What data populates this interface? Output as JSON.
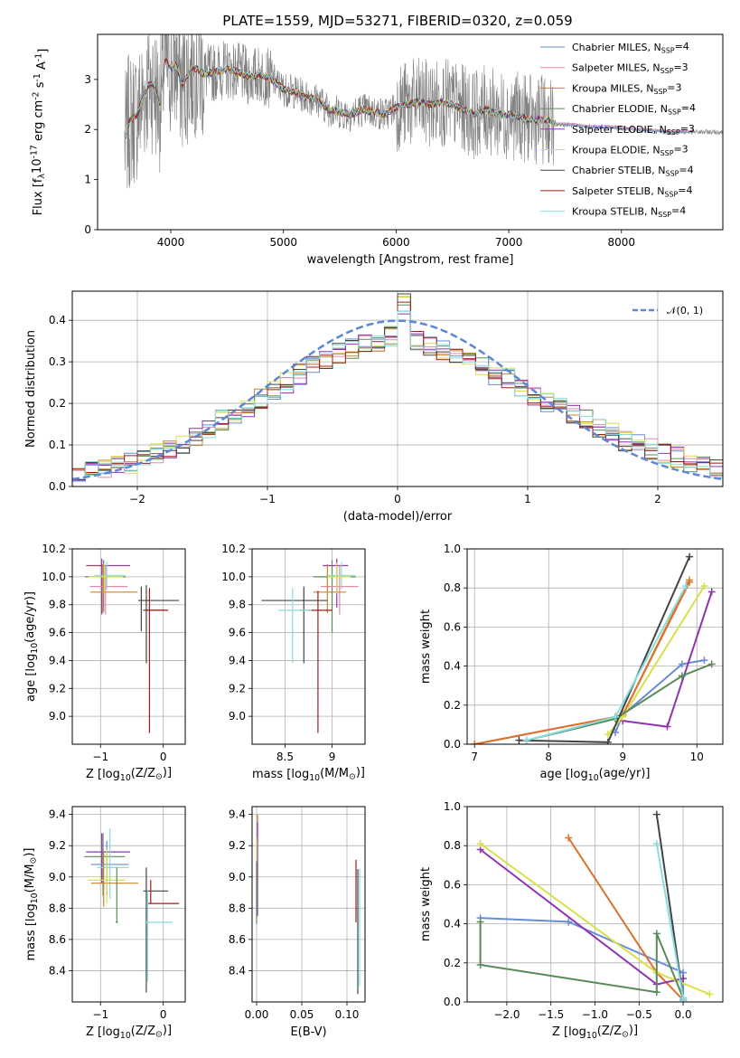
{
  "figure": {
    "title": "PLATE=1559, MJD=53271, FIBERID=0320, z=0.059"
  },
  "chart_data": [
    {
      "id": "spectrum",
      "type": "line",
      "xlabel": "wavelength [Angstrom, rest frame]",
      "ylabel": "Flux [f_λ10^{-17} erg cm^{-2} s^{-1} A^{-1}]",
      "xlim": [
        3350,
        8900
      ],
      "ylim": [
        0,
        3.9
      ],
      "xticks": [
        4000,
        5000,
        6000,
        7000,
        8000
      ],
      "yticks": [
        0,
        1,
        2,
        3
      ],
      "grid": false,
      "legend_position": "right",
      "data_color": "#808080",
      "data_range": [
        3590,
        8900
      ],
      "continuum": {
        "x": [
          3590,
          3620,
          3650,
          3700,
          3750,
          3800,
          3850,
          3900,
          3950,
          4000,
          4050,
          4100,
          4200,
          4300,
          4400,
          4500,
          4600,
          4700,
          4800,
          4900,
          5000,
          5100,
          5200,
          5300,
          5400,
          5500,
          5600,
          5700,
          5800,
          5900,
          6000,
          6100,
          6200,
          6300,
          6400,
          6500,
          6600,
          6700,
          6800,
          6900,
          7000,
          7100,
          7200,
          7300,
          7400,
          7420
        ],
        "y": [
          1.7,
          2.1,
          2.2,
          2.3,
          2.6,
          2.9,
          2.9,
          2.5,
          3.4,
          3.2,
          3.3,
          2.9,
          3.25,
          3.1,
          3.15,
          3.2,
          3.15,
          3.05,
          3.1,
          3.0,
          2.8,
          2.75,
          2.65,
          2.6,
          2.4,
          2.35,
          2.3,
          2.4,
          2.35,
          2.3,
          2.45,
          2.5,
          2.55,
          2.5,
          2.55,
          2.5,
          2.4,
          2.3,
          2.4,
          2.3,
          2.3,
          2.25,
          2.2,
          2.2,
          2.15,
          2.1
        ]
      },
      "model_extension": {
        "x": [
          7420,
          7500,
          7600,
          7700,
          7800,
          7900,
          8000,
          8100,
          8200,
          8300,
          8400,
          8500,
          8600
        ],
        "y": [
          2.1,
          2.1,
          2.08,
          2.05,
          2.05,
          2.05,
          2.02,
          2.0,
          1.98,
          1.97,
          1.95,
          1.95,
          1.95
        ]
      },
      "series": [
        {
          "name": "Chabrier MILES, N_{SSP}=4",
          "color": "#6a8bd6"
        },
        {
          "name": "Salpeter MILES, N_{SSP}=3",
          "color": "#e08ab4"
        },
        {
          "name": "Kroupa MILES, N_{SSP}=3",
          "color": "#c7842a"
        },
        {
          "name": "Chabrier ELODIE, N_{SSP}=4",
          "color": "#5a8a5a"
        },
        {
          "name": "Salpeter ELODIE, N_{SSP}=3",
          "color": "#8e34b0"
        },
        {
          "name": "Kroupa ELODIE, N_{SSP}=3",
          "color": "#d8e04a"
        },
        {
          "name": "Chabrier STELIB, N_{SSP}=4",
          "color": "#444444"
        },
        {
          "name": "Salpeter STELIB, N_{SSP}=4",
          "color": "#a01c1c"
        },
        {
          "name": "Kroupa STELIB, N_{SSP}=4",
          "color": "#88dede"
        }
      ]
    },
    {
      "id": "residuals",
      "type": "histogram",
      "xlabel": "(data-model)/error",
      "ylabel": "Normed distribution",
      "xlim": [
        -2.5,
        2.5
      ],
      "ylim": [
        0,
        0.47
      ],
      "xticks": [
        -2,
        -1,
        0,
        1,
        2
      ],
      "yticks": [
        0.0,
        0.1,
        0.2,
        0.3,
        0.4
      ],
      "grid": true,
      "legend": "𝒩(0, 1)",
      "legend_position": "top-right",
      "gauss_color": "#5b87d6",
      "bin_edges_range": [
        -2.5,
        2.5
      ],
      "bin_count": 50,
      "base_distribution": [
        0.03,
        0.035,
        0.04,
        0.05,
        0.055,
        0.07,
        0.08,
        0.09,
        0.1,
        0.12,
        0.14,
        0.16,
        0.17,
        0.19,
        0.21,
        0.23,
        0.25,
        0.27,
        0.29,
        0.3,
        0.32,
        0.33,
        0.34,
        0.35,
        0.36,
        0.37,
        0.35,
        0.34,
        0.33,
        0.32,
        0.3,
        0.29,
        0.27,
        0.26,
        0.24,
        0.22,
        0.2,
        0.19,
        0.17,
        0.16,
        0.14,
        0.13,
        0.11,
        0.1,
        0.09,
        0.08,
        0.07,
        0.06,
        0.05,
        0.04
      ]
    },
    {
      "id": "age_vs_Z",
      "type": "errorbar",
      "xlabel": "Z [log_{10}(Z/Z_⊙)]",
      "ylabel": "age [log_{10}(age/yr)]",
      "xlim": [
        -1.45,
        0.35
      ],
      "ylim": [
        8.8,
        10.2
      ],
      "xticks": [
        -1,
        0
      ],
      "yticks": [
        9.0,
        9.2,
        9.4,
        9.6,
        9.8,
        10.0,
        10.2
      ],
      "grid": true,
      "points": [
        {
          "x": -0.98,
          "y": 10.08,
          "xerr": [
            0.25,
            0.45
          ],
          "yerr": [
            0.35,
            0.05
          ],
          "color": "#8e34b0"
        },
        {
          "x": -0.95,
          "y": 10.0,
          "xerr": [
            0.3,
            0.35
          ],
          "yerr": [
            0.25,
            0.12
          ],
          "color": "#5a8a5a"
        },
        {
          "x": -0.92,
          "y": 9.93,
          "xerr": [
            0.25,
            0.35
          ],
          "yerr": [
            0.2,
            0.15
          ],
          "color": "#e08ab4"
        },
        {
          "x": -0.9,
          "y": 10.01,
          "xerr": [
            0.2,
            0.3
          ],
          "yerr": [
            0.1,
            0.1
          ],
          "color": "#88dede"
        },
        {
          "x": -0.96,
          "y": 9.89,
          "xerr": [
            0.2,
            0.55
          ],
          "yerr": [
            0.15,
            0.2
          ],
          "color": "#c7842a"
        },
        {
          "x": -0.94,
          "y": 10.0,
          "xerr": [
            0.25,
            0.3
          ],
          "yerr": [
            0.12,
            0.1
          ],
          "color": "#d8e04a"
        },
        {
          "x": -0.27,
          "y": 9.76,
          "xerr": [
            0.05,
            0.3
          ],
          "yerr": [
            0.38,
            0.18
          ],
          "color": "#444444"
        },
        {
          "x": -0.22,
          "y": 9.76,
          "xerr": [
            0.05,
            0.3
          ],
          "yerr": [
            0.88,
            0.16
          ],
          "color": "#a01c1c"
        },
        {
          "x": -0.35,
          "y": 9.83,
          "xerr": [
            0.05,
            0.6
          ],
          "yerr": [
            0.22,
            0.1
          ],
          "color": "#444444"
        }
      ]
    },
    {
      "id": "age_vs_mass",
      "type": "errorbar",
      "xlabel": "mass [log_{10}(M/M_⊙)]",
      "ylabel": "",
      "xlim": [
        8.15,
        9.35
      ],
      "ylim": [
        8.8,
        10.2
      ],
      "xticks": [
        8.5,
        9.0
      ],
      "yticks": [
        9.0,
        9.2,
        9.4,
        9.6,
        9.8,
        10.0,
        10.2
      ],
      "grid": true,
      "points": [
        {
          "x": 9.05,
          "y": 10.08,
          "xerr": [
            0.15,
            0.12
          ],
          "yerr": [
            0.3,
            0.05
          ],
          "color": "#8e34b0"
        },
        {
          "x": 9.0,
          "y": 10.0,
          "xerr": [
            0.2,
            0.25
          ],
          "yerr": [
            0.4,
            0.12
          ],
          "color": "#5a8a5a"
        },
        {
          "x": 9.08,
          "y": 9.93,
          "xerr": [
            0.2,
            0.2
          ],
          "yerr": [
            0.2,
            0.15
          ],
          "color": "#e08ab4"
        },
        {
          "x": 9.1,
          "y": 10.01,
          "xerr": [
            0.15,
            0.15
          ],
          "yerr": [
            0.1,
            0.1
          ],
          "color": "#88dede"
        },
        {
          "x": 8.95,
          "y": 9.89,
          "xerr": [
            0.15,
            0.2
          ],
          "yerr": [
            0.15,
            0.2
          ],
          "color": "#c7842a"
        },
        {
          "x": 9.05,
          "y": 10.0,
          "xerr": [
            0.1,
            0.15
          ],
          "yerr": [
            0.12,
            0.1
          ],
          "color": "#d8e04a"
        },
        {
          "x": 8.7,
          "y": 9.83,
          "xerr": [
            0.45,
            0.25
          ],
          "yerr": [
            0.45,
            0.1
          ],
          "color": "#444444"
        },
        {
          "x": 8.85,
          "y": 9.76,
          "xerr": [
            0.2,
            0.15
          ],
          "yerr": [
            0.88,
            0.14
          ],
          "color": "#a01c1c"
        },
        {
          "x": 8.58,
          "y": 9.76,
          "xerr": [
            0.15,
            0.2
          ],
          "yerr": [
            0.38,
            0.16
          ],
          "color": "#88dede"
        }
      ]
    },
    {
      "id": "weight_vs_age",
      "type": "line",
      "xlabel": "age [log_{10}(age/yr)]",
      "ylabel": "mass weight",
      "xlim": [
        6.9,
        10.35
      ],
      "ylim": [
        0,
        1.0
      ],
      "xticks": [
        7,
        8,
        9,
        10
      ],
      "yticks": [
        0.0,
        0.2,
        0.4,
        0.6,
        0.8,
        1.0
      ],
      "grid": true,
      "series": [
        {
          "color": "#6a8bd6",
          "x": [
            8.9,
            9.0,
            9.8,
            10.1
          ],
          "y": [
            0.06,
            0.15,
            0.41,
            0.43
          ]
        },
        {
          "color": "#c7842a",
          "x": [
            7.0,
            8.9,
            9.0,
            9.9
          ],
          "y": [
            0.0,
            0.14,
            0.15,
            0.84
          ]
        },
        {
          "color": "#e07030",
          "x": [
            7.0,
            8.9,
            9.0,
            9.9
          ],
          "y": [
            0.0,
            0.14,
            0.15,
            0.83
          ]
        },
        {
          "color": "#8e34b0",
          "x": [
            9.0,
            9.6,
            10.2
          ],
          "y": [
            0.12,
            0.09,
            0.78
          ]
        },
        {
          "color": "#d8e04a",
          "x": [
            8.8,
            9.0,
            10.1
          ],
          "y": [
            0.05,
            0.14,
            0.81
          ]
        },
        {
          "color": "#5a8a5a",
          "x": [
            7.7,
            8.9,
            9.8,
            10.2
          ],
          "y": [
            0.02,
            0.13,
            0.35,
            0.41
          ]
        },
        {
          "color": "#444444",
          "x": [
            7.6,
            8.8,
            9.9
          ],
          "y": [
            0.02,
            0.01,
            0.96
          ]
        },
        {
          "color": "#88dede",
          "x": [
            7.7,
            8.9,
            9.85
          ],
          "y": [
            0.02,
            0.14,
            0.81
          ]
        }
      ]
    },
    {
      "id": "mass_vs_Z",
      "type": "errorbar",
      "xlabel": "Z [log_{10}(Z/Z_⊙)]",
      "ylabel": "mass [log_{10}(M/M_⊙)]",
      "xlim": [
        -1.45,
        0.35
      ],
      "ylim": [
        8.2,
        9.45
      ],
      "xticks": [
        -1,
        0
      ],
      "yticks": [
        8.4,
        8.6,
        8.8,
        9.0,
        9.2,
        9.4
      ],
      "grid": true,
      "points": [
        {
          "x": -0.98,
          "y": 9.16,
          "xerr": [
            0.25,
            0.45
          ],
          "yerr": [
            0.2,
            0.12
          ],
          "color": "#8e34b0"
        },
        {
          "x": -0.96,
          "y": 9.13,
          "xerr": [
            0.3,
            0.35
          ],
          "yerr": [
            0.25,
            0.15
          ],
          "color": "#5a8a5a"
        },
        {
          "x": -0.9,
          "y": 9.08,
          "xerr": [
            0.25,
            0.35
          ],
          "yerr": [
            0.2,
            0.15
          ],
          "color": "#6a8bd6"
        },
        {
          "x": -0.85,
          "y": 9.06,
          "xerr": [
            0.2,
            0.3
          ],
          "yerr": [
            0.2,
            0.25
          ],
          "color": "#88dede"
        },
        {
          "x": -0.95,
          "y": 8.96,
          "xerr": [
            0.2,
            0.55
          ],
          "yerr": [
            0.15,
            0.2
          ],
          "color": "#c7842a"
        },
        {
          "x": -0.9,
          "y": 8.98,
          "xerr": [
            0.3,
            0.3
          ],
          "yerr": [
            0.15,
            0.2
          ],
          "color": "#d8e04a"
        },
        {
          "x": -0.27,
          "y": 8.91,
          "xerr": [
            0.05,
            0.35
          ],
          "yerr": [
            0.65,
            0.15
          ],
          "color": "#444444"
        },
        {
          "x": -0.2,
          "y": 8.83,
          "xerr": [
            0.05,
            0.45
          ],
          "yerr": [
            0.0,
            0.15
          ],
          "color": "#a01c1c"
        },
        {
          "x": -0.25,
          "y": 8.71,
          "xerr": [
            0.05,
            0.4
          ],
          "yerr": [
            0.38,
            0.2
          ],
          "color": "#88dede"
        },
        {
          "x": -0.74,
          "y": 8.71,
          "xerr": [
            0.02,
            0.02
          ],
          "yerr": [
            0.0,
            0.35
          ],
          "color": "#5a8a5a"
        }
      ]
    },
    {
      "id": "mass_vs_ebv",
      "type": "errorbar",
      "xlabel": "E(B-V)",
      "ylabel": "",
      "xlim": [
        -0.005,
        0.12
      ],
      "ylim": [
        8.2,
        9.45
      ],
      "xticks": [
        0.0,
        0.05,
        0.1
      ],
      "xtick_labels": [
        "0.00",
        "0.05",
        "0.10"
      ],
      "yticks": [
        8.4,
        8.6,
        8.8,
        9.0,
        9.2,
        9.4
      ],
      "grid": true,
      "points": [
        {
          "x": 0.001,
          "y": 9.15,
          "yerr": [
            0.2,
            0.25
          ],
          "color": "#e07030"
        },
        {
          "x": 0.001,
          "y": 9.05,
          "yerr": [
            0.3,
            0.3
          ],
          "color": "#8e34b0"
        },
        {
          "x": 0.0,
          "y": 9.0,
          "yerr": [
            0.2,
            0.25
          ],
          "color": "#d8e04a"
        },
        {
          "x": 0.0,
          "y": 8.9,
          "yerr": [
            0.2,
            0.2
          ],
          "color": "#5a8a5a"
        },
        {
          "x": 0.11,
          "y": 8.91,
          "yerr": [
            0.2,
            0.2
          ],
          "color": "#a01c1c"
        },
        {
          "x": 0.112,
          "y": 8.7,
          "yerr": [
            0.45,
            0.35
          ],
          "color": "#444444"
        },
        {
          "x": 0.114,
          "y": 8.7,
          "yerr": [
            0.4,
            0.35
          ],
          "color": "#88dede"
        }
      ]
    },
    {
      "id": "weight_vs_Z",
      "type": "line",
      "xlabel": "Z [log_{10}(Z/Z_⊙)]",
      "ylabel": "mass weight",
      "xlim": [
        -2.45,
        0.45
      ],
      "ylim": [
        0,
        1.0
      ],
      "xticks": [
        -2.0,
        -1.5,
        -1.0,
        -0.5,
        0.0
      ],
      "xtick_labels": [
        "−2.0",
        "−1.5",
        "−1.0",
        "−0.5",
        "0.0"
      ],
      "yticks": [
        0.0,
        0.2,
        0.4,
        0.6,
        0.8,
        1.0
      ],
      "grid": true,
      "series": [
        {
          "color": "#6a8bd6",
          "x": [
            -2.3,
            -1.3,
            0.0,
            0.0
          ],
          "y": [
            0.43,
            0.41,
            0.15,
            0.01
          ]
        },
        {
          "color": "#e07030",
          "x": [
            -1.3,
            -0.3,
            0.0
          ],
          "y": [
            0.84,
            0.15,
            0.01
          ]
        },
        {
          "color": "#8e34b0",
          "x": [
            -2.3,
            -0.3,
            0.0
          ],
          "y": [
            0.78,
            0.09,
            0.12
          ]
        },
        {
          "color": "#d8e04a",
          "x": [
            -2.3,
            -0.3,
            0.3
          ],
          "y": [
            0.81,
            0.15,
            0.04
          ]
        },
        {
          "color": "#5a8a5a",
          "x": [
            -2.3,
            -2.3,
            -0.3,
            -0.3,
            0.0
          ],
          "y": [
            0.41,
            0.19,
            0.05,
            0.35,
            0.02
          ]
        },
        {
          "color": "#444444",
          "x": [
            -0.3,
            0.0,
            0.0
          ],
          "y": [
            0.96,
            0.02,
            0.01
          ]
        },
        {
          "color": "#88dede",
          "x": [
            -0.3,
            0.0,
            0.0
          ],
          "y": [
            0.81,
            0.02,
            0.01
          ]
        }
      ]
    }
  ]
}
